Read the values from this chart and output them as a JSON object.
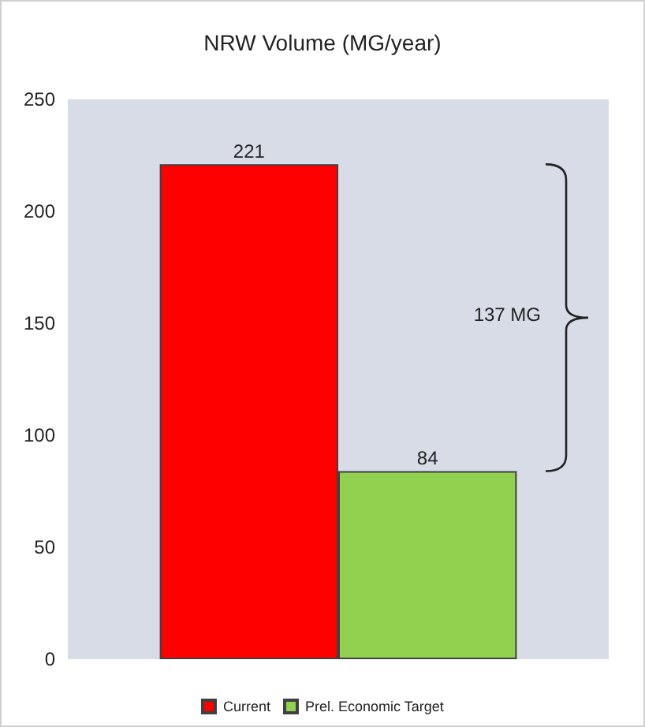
{
  "chart_data": {
    "type": "bar",
    "title": "NRW Volume (MG/year)",
    "categories": [
      null
    ],
    "series": [
      {
        "name": "Current",
        "color": "#ff0000",
        "values": [
          221
        ]
      },
      {
        "name": "Prel. Economic Target",
        "color": "#92d050",
        "values": [
          84
        ]
      }
    ],
    "ylim": [
      0,
      250
    ],
    "yticks": [
      0,
      50,
      100,
      150,
      200,
      250
    ],
    "grid": false,
    "legend": "bottom",
    "data_labels": true,
    "annotations": [
      "137 MG"
    ]
  }
}
